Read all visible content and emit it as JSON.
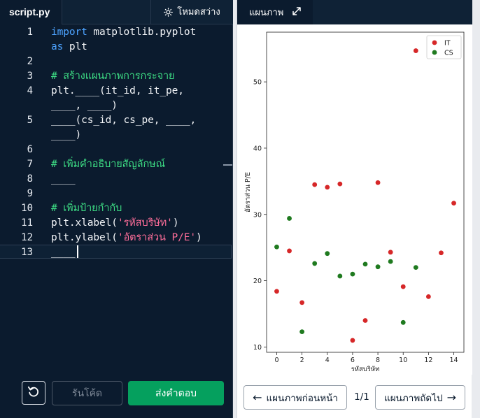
{
  "editor": {
    "file_tab": "script.py",
    "theme_toggle_label": "โหมดสว่าง",
    "lines": [
      {
        "n": "1",
        "parts": [
          {
            "t": "import",
            "c": "kw"
          },
          {
            "t": " matplotlib.pyplot",
            "c": ""
          }
        ]
      },
      {
        "n": "",
        "parts": [
          {
            "t": "as",
            "c": "kw"
          },
          {
            "t": " plt",
            "c": ""
          }
        ]
      },
      {
        "n": "2",
        "parts": []
      },
      {
        "n": "3",
        "parts": [
          {
            "t": "# สร้างแผนภาพการกระจาย",
            "c": "cm"
          }
        ]
      },
      {
        "n": "4",
        "parts": [
          {
            "t": "plt.____(it_id, it_pe,",
            "c": ""
          }
        ]
      },
      {
        "n": "",
        "parts": [
          {
            "t": "____, ____)",
            "c": ""
          }
        ]
      },
      {
        "n": "5",
        "parts": [
          {
            "t": "____(cs_id, cs_pe, ____,",
            "c": ""
          }
        ]
      },
      {
        "n": "",
        "parts": [
          {
            "t": "____)",
            "c": ""
          }
        ]
      },
      {
        "n": "6",
        "parts": []
      },
      {
        "n": "7",
        "parts": [
          {
            "t": "# เพิ่มคำอธิบายสัญลักษณ์",
            "c": "cm"
          }
        ]
      },
      {
        "n": "8",
        "parts": [
          {
            "t": "____",
            "c": ""
          }
        ]
      },
      {
        "n": "9",
        "parts": []
      },
      {
        "n": "10",
        "parts": [
          {
            "t": "# เพิ่มป้ายกำกับ",
            "c": "cm"
          }
        ]
      },
      {
        "n": "11",
        "parts": [
          {
            "t": "plt.xlabel(",
            "c": ""
          },
          {
            "t": "'รหัสบริษัท'",
            "c": "str"
          },
          {
            "t": ")",
            "c": ""
          }
        ]
      },
      {
        "n": "12",
        "parts": [
          {
            "t": "plt.ylabel(",
            "c": ""
          },
          {
            "t": "'อัตราส่วน P/E'",
            "c": "str"
          },
          {
            "t": ")",
            "c": ""
          }
        ]
      },
      {
        "n": "13",
        "parts": [
          {
            "t": "____",
            "c": ""
          }
        ]
      }
    ]
  },
  "buttons": {
    "run_label": "รันโค้ด",
    "submit_label": "ส่งคำตอบ"
  },
  "plot_panel": {
    "tab_label": "แผนภาพ",
    "prev_label": "แผนภาพก่อนหน้า",
    "next_label": "แผนภาพถัดไป",
    "page_indicator": "1/1"
  },
  "colors": {
    "it": "#d62728",
    "cs": "#1f7a1f",
    "accent": "#05a05e"
  },
  "chart_data": {
    "type": "scatter",
    "xlabel": "รหัสบริษัท",
    "ylabel": "อัตราส่วน P/E",
    "xlim": [
      -0.8,
      14.8
    ],
    "ylim": [
      9.2,
      57.5
    ],
    "xticks": [
      0,
      2,
      4,
      6,
      8,
      10,
      12,
      14
    ],
    "yticks": [
      10,
      20,
      30,
      40,
      50
    ],
    "grid": false,
    "legend": "top-right",
    "series": [
      {
        "name": "IT",
        "color": "#d62728",
        "x": [
          0,
          1,
          2,
          3,
          4,
          5,
          6,
          7,
          8,
          9,
          10,
          11,
          12,
          13,
          14
        ],
        "y": [
          18.4,
          24.5,
          16.7,
          34.5,
          34.1,
          34.6,
          11.0,
          14.0,
          34.8,
          24.3,
          19.1,
          54.7,
          17.6,
          24.2,
          31.7
        ]
      },
      {
        "name": "CS",
        "color": "#1f7a1f",
        "x": [
          0,
          1,
          2,
          3,
          4,
          5,
          6,
          7,
          8,
          9,
          10,
          11
        ],
        "y": [
          25.1,
          29.4,
          12.3,
          22.6,
          24.1,
          20.7,
          21.0,
          22.5,
          22.1,
          22.9,
          13.7,
          22.0
        ]
      }
    ]
  }
}
